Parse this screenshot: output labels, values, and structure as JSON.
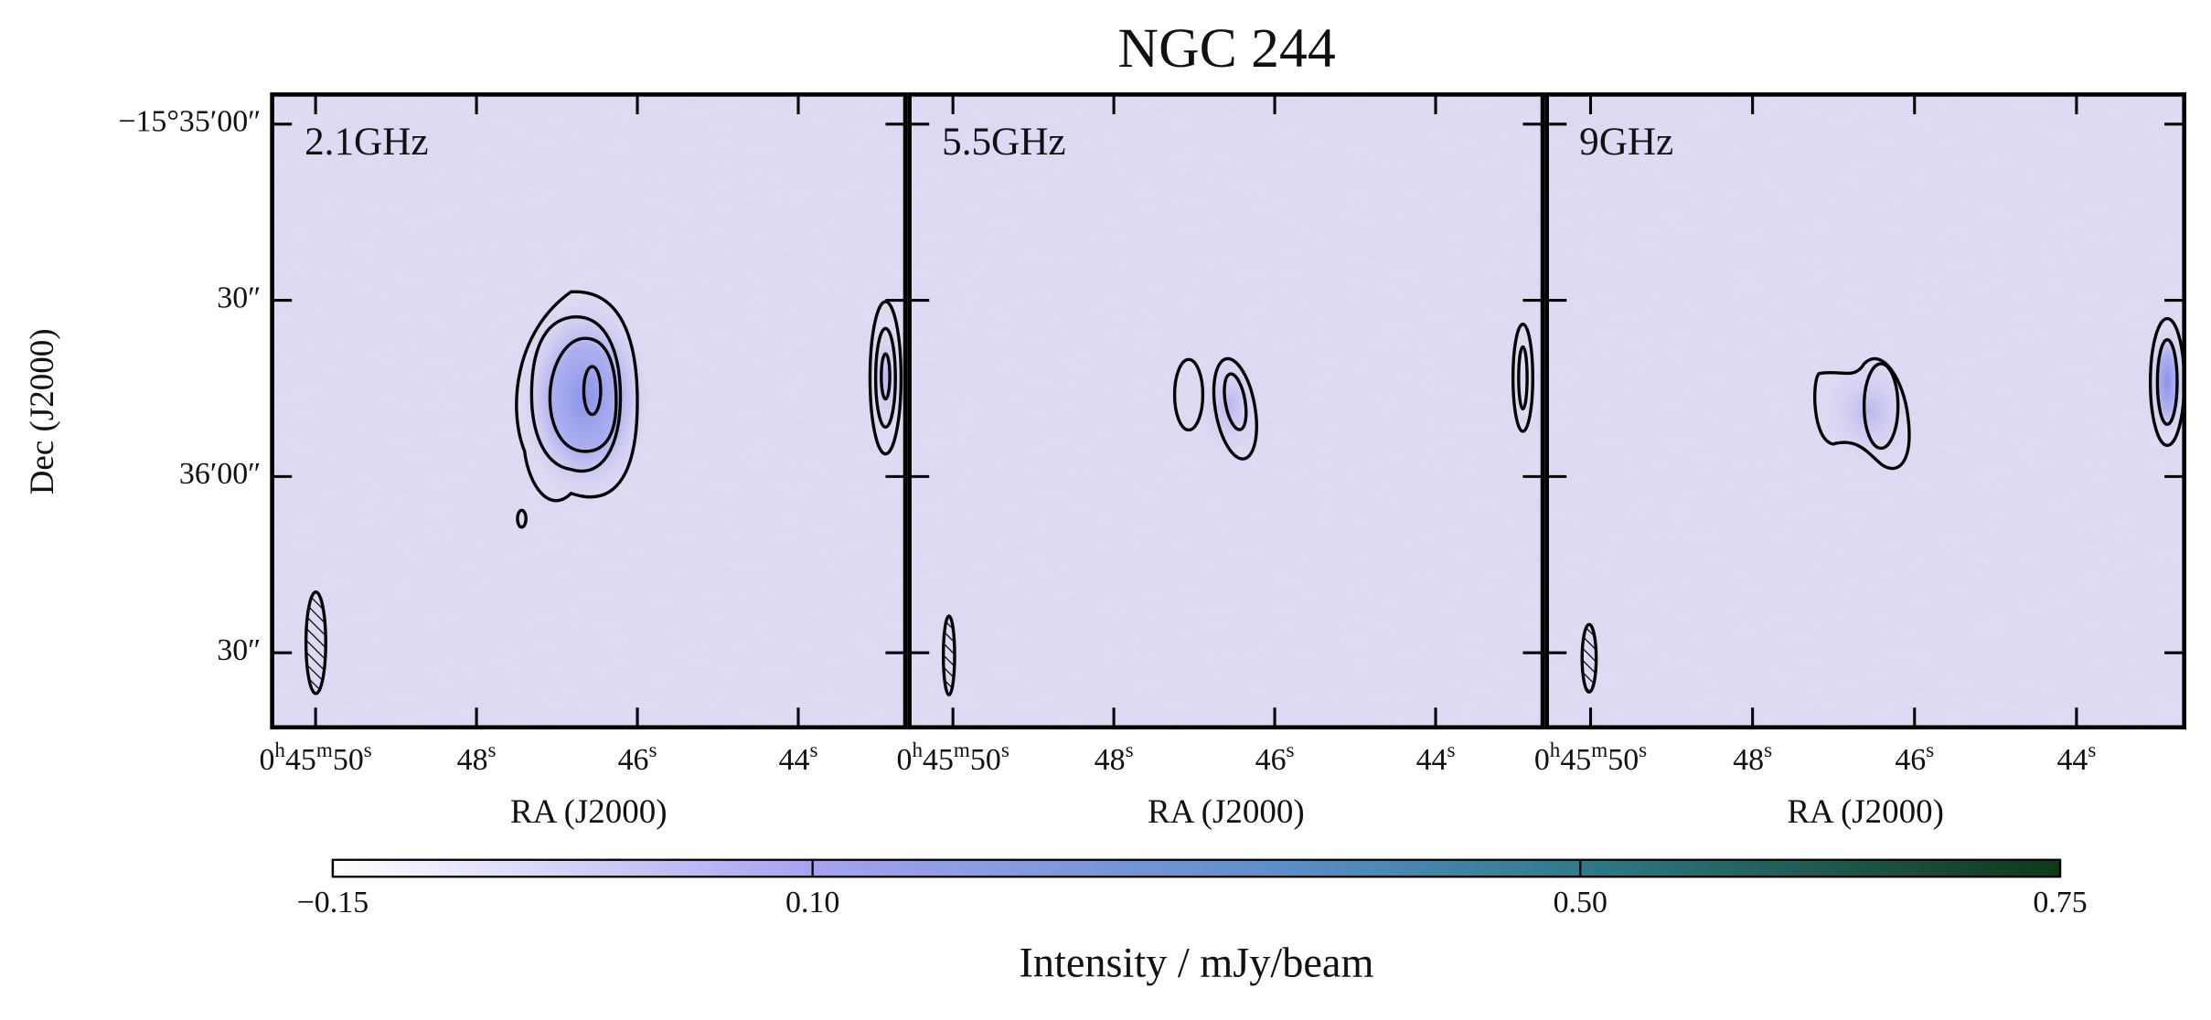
{
  "figure": {
    "title": "NGC 244",
    "ylabel": "Dec (J2000)",
    "ylim": [
      -56094.96,
      -56202.7
    ],
    "yticks": [
      {
        "value": -56100,
        "label": "−15°35′00″"
      },
      {
        "value": -56130,
        "label": "30″"
      },
      {
        "value": -56160,
        "label": "36′00″"
      },
      {
        "value": -56190,
        "label": "30″"
      }
    ],
    "panels": [
      {
        "label": "2.1GHz",
        "xlabel": "RA (J2000)",
        "xlim": [
          50.54,
          42.67
        ],
        "xticks": [
          {
            "value": 50,
            "label": [
              "0",
              "h",
              "45",
              "m",
              "50",
              "s"
            ]
          },
          {
            "value": 48,
            "label": [
              "48",
              "s"
            ]
          },
          {
            "value": 46,
            "label": [
              "46",
              "s"
            ]
          },
          {
            "value": 44,
            "label": [
              "44",
              "s"
            ]
          }
        ]
      },
      {
        "label": "5.5GHz",
        "xlabel": "RA (J2000)",
        "xlim": [
          50.54,
          42.67
        ],
        "xticks": [
          {
            "value": 50,
            "label": [
              "0",
              "h",
              "45",
              "m",
              "50",
              "s"
            ]
          },
          {
            "value": 48,
            "label": [
              "48",
              "s"
            ]
          },
          {
            "value": 46,
            "label": [
              "46",
              "s"
            ]
          },
          {
            "value": 44,
            "label": [
              "44",
              "s"
            ]
          }
        ]
      },
      {
        "label": "9GHz",
        "xlabel": "RA (J2000)",
        "xlim": [
          50.54,
          42.67
        ],
        "xticks": [
          {
            "value": 50,
            "label": [
              "0",
              "h",
              "45",
              "m",
              "50",
              "s"
            ]
          },
          {
            "value": 48,
            "label": [
              "48",
              "s"
            ]
          },
          {
            "value": 46,
            "label": [
              "46",
              "s"
            ]
          },
          {
            "value": 44,
            "label": [
              "44",
              "s"
            ]
          }
        ]
      }
    ],
    "colorbar": {
      "label": "Intensity / mJy/beam",
      "clim": [
        -0.15,
        0.75
      ],
      "ticks": [
        {
          "value": -0.15,
          "label": "−0.15"
        },
        {
          "value": 0.1,
          "label": "0.10"
        },
        {
          "value": 0.5,
          "label": "0.50"
        },
        {
          "value": 0.75,
          "label": "0.75"
        }
      ]
    }
  }
}
